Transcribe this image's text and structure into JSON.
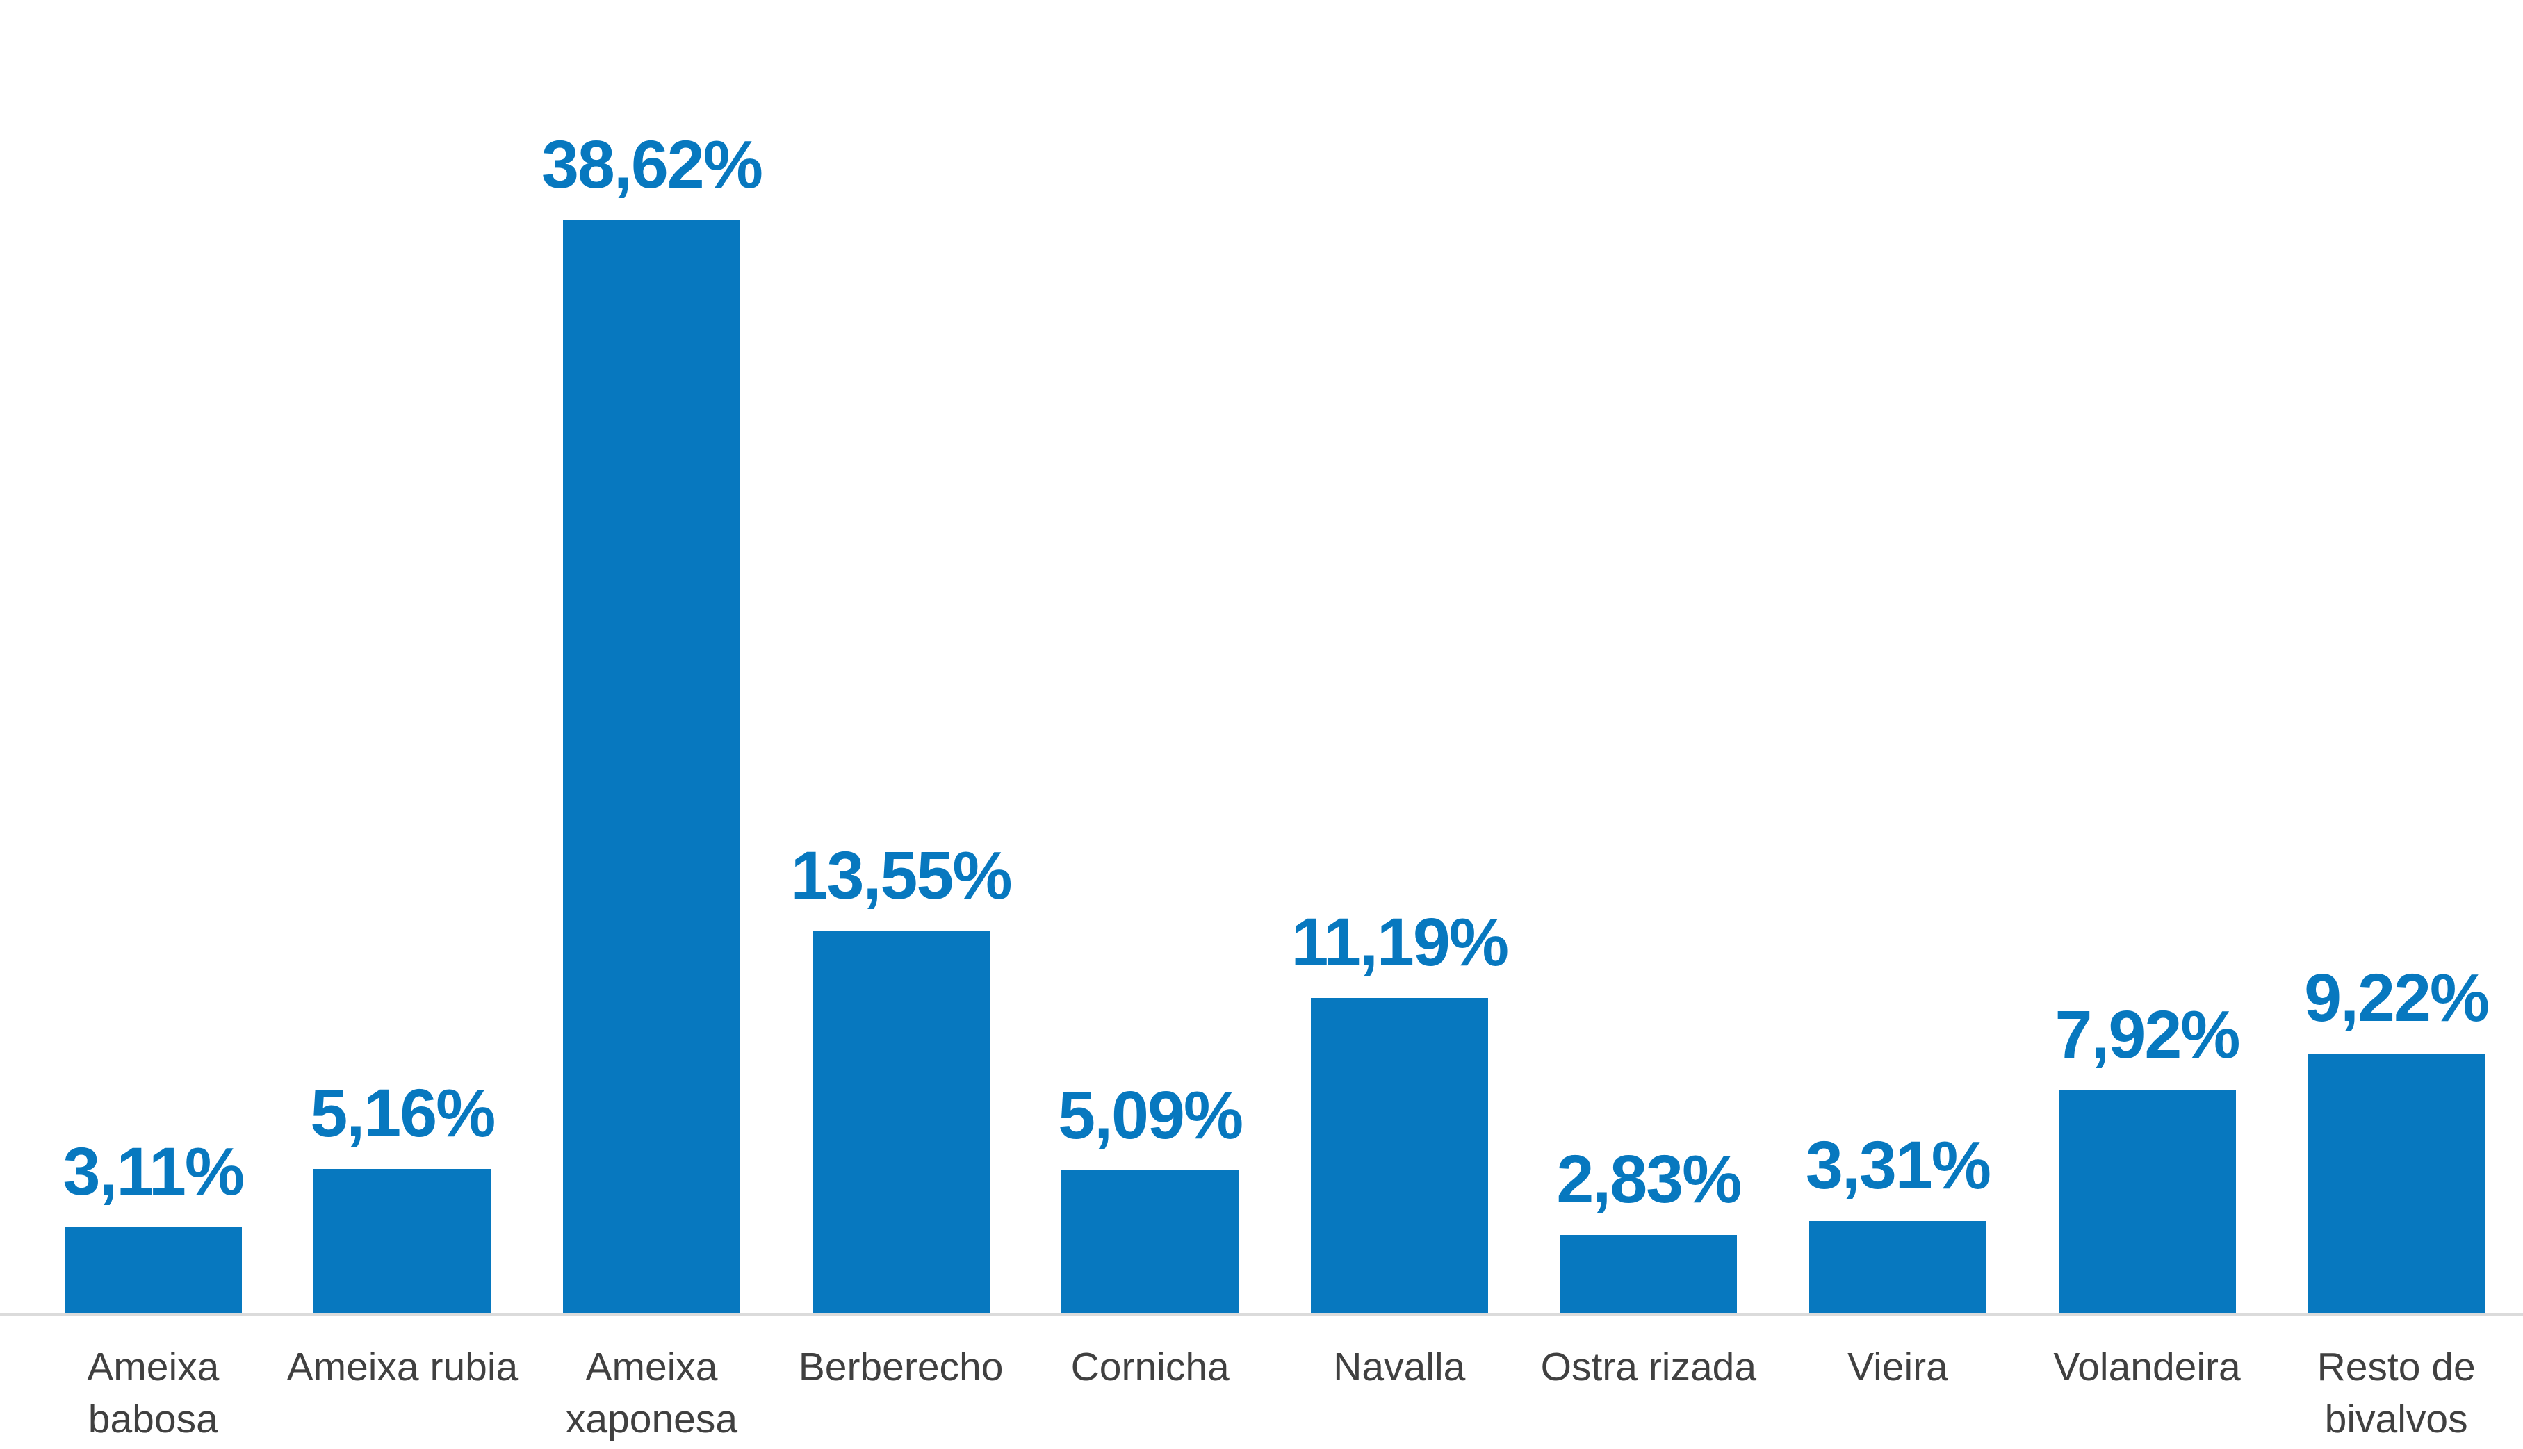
{
  "chart_data": {
    "type": "bar",
    "title": "",
    "xlabel": "",
    "ylabel": "",
    "ylim": [
      0,
      40
    ],
    "grid": false,
    "legend": null,
    "categories": [
      "Ameixa\nbabosa",
      "Ameixa rubia",
      "Ameixa\nxaponesa",
      "Berberecho",
      "Cornicha",
      "Navalla",
      "Ostra rizada",
      "Vieira",
      "Volandeira",
      "Resto de\nbivalvos"
    ],
    "values": [
      3.11,
      5.16,
      38.62,
      13.55,
      5.09,
      11.19,
      2.83,
      3.31,
      7.92,
      9.22
    ],
    "value_labels": [
      "3,11%",
      "5,16%",
      "38,62%",
      "13,55%",
      "5,09%",
      "11,19%",
      "2,83%",
      "3,31%",
      "7,92%",
      "9,22%"
    ],
    "colors": {
      "bar": "#0778BF",
      "value_label": "#0778BF",
      "category_label": "#404040",
      "baseline": "#DBDBDB",
      "background": "#FFFFFF"
    }
  }
}
